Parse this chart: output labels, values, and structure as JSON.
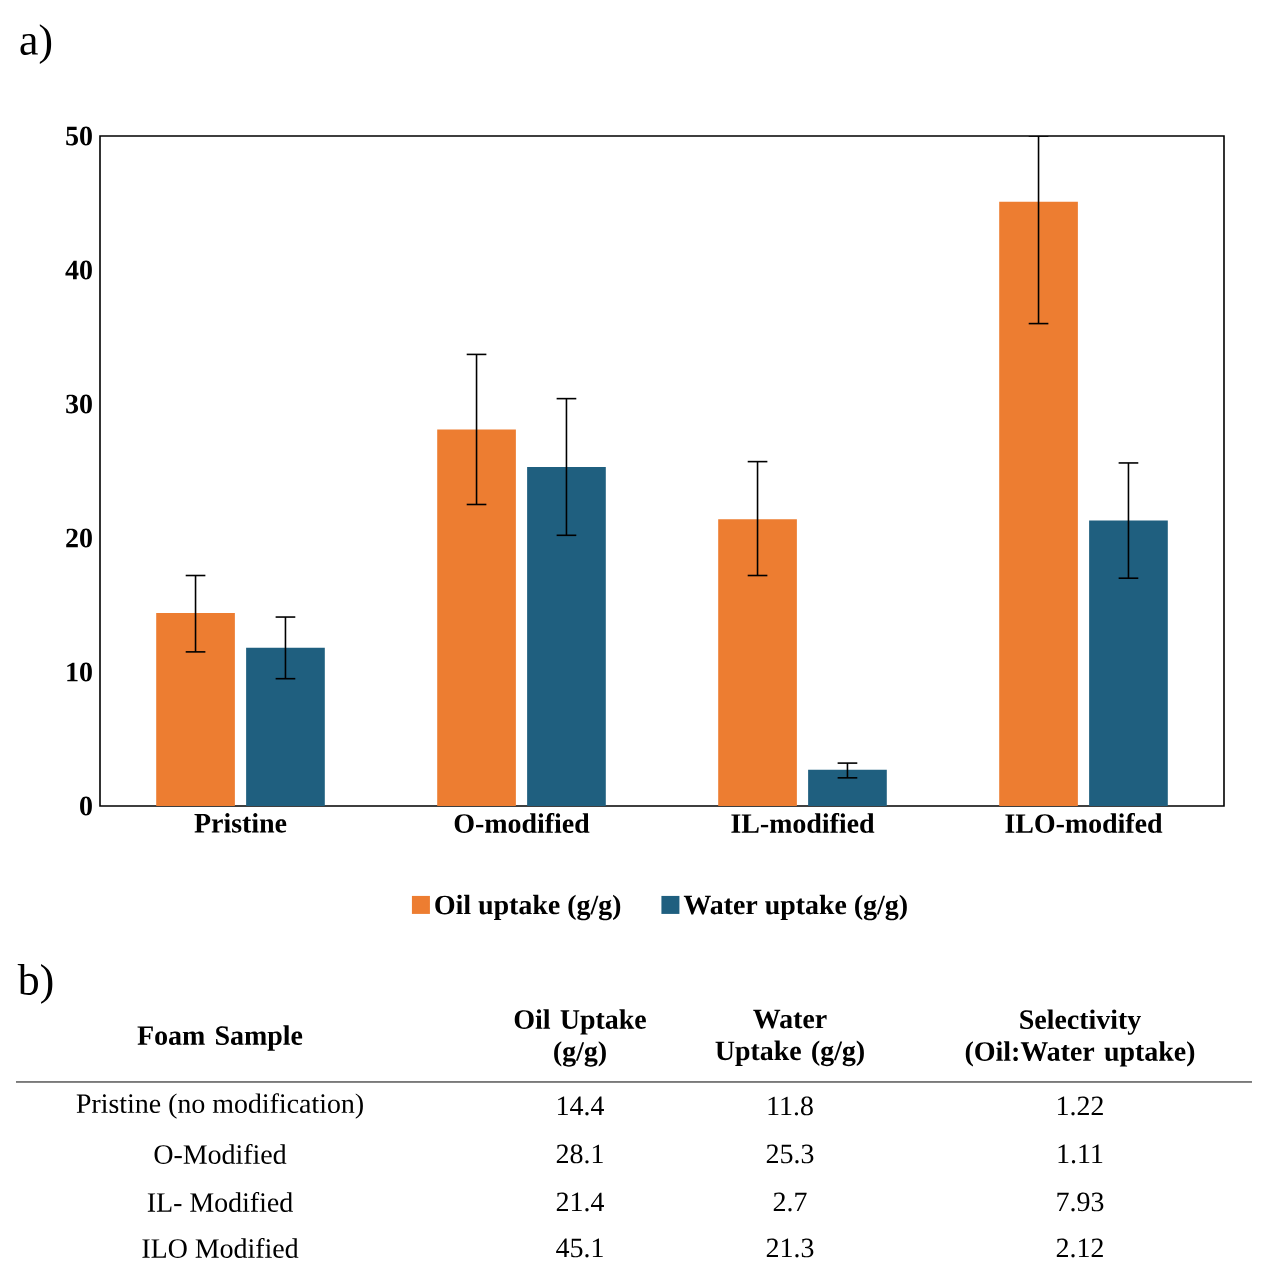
{
  "chart_data": {
    "type": "bar",
    "categories": [
      "Pristine",
      "O-modified",
      "IL-modified",
      "ILO-modifed"
    ],
    "series": [
      {
        "name": "Oil uptake (g/g)",
        "color": "#ed7d31",
        "values": [
          14.4,
          28.1,
          21.4,
          45.1
        ],
        "errors": [
          [
            11.5,
            17.2
          ],
          [
            22.5,
            33.7
          ],
          [
            17.2,
            25.7
          ],
          [
            36.0,
            50.0
          ]
        ]
      },
      {
        "name": "Water uptake (g/g)",
        "color": "#1f5f7f",
        "values": [
          11.8,
          25.3,
          2.7,
          21.3
        ],
        "errors": [
          [
            9.5,
            14.1
          ],
          [
            20.2,
            30.4
          ],
          [
            2.1,
            3.2
          ],
          [
            17.0,
            25.6
          ]
        ]
      }
    ],
    "ylim": [
      0,
      50
    ],
    "yticks": [
      0,
      10,
      20,
      30,
      40,
      50
    ],
    "grid": false,
    "legend": "bottom",
    "annotations": [
      "a)",
      "b)",
      "Foam Sample",
      "Oil Uptake (g/g)",
      "Water Uptake (g/g)",
      "Selectivity (Oil:Water uptake)",
      "Pristine (no modification)",
      "14.4",
      "11.8",
      "1.22",
      "O-Modified",
      "28.1",
      "25.3",
      "1.11",
      "IL- Modified",
      "21.4",
      "2.7",
      "7.93",
      "ILO Modified",
      "45.1",
      "21.3",
      "2.12"
    ]
  }
}
